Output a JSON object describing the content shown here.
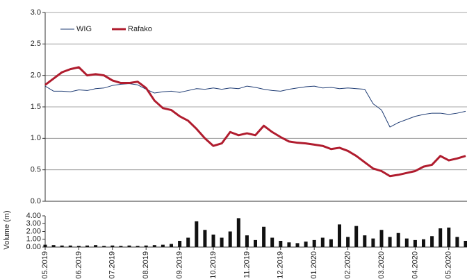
{
  "chart_data": [
    {
      "type": "line",
      "series": [
        {
          "name": "WIG",
          "color": "#1f3c74",
          "width": 1,
          "values": [
            1.83,
            1.75,
            1.75,
            1.74,
            1.77,
            1.76,
            1.79,
            1.8,
            1.84,
            1.86,
            1.87,
            1.85,
            1.78,
            1.72,
            1.74,
            1.75,
            1.73,
            1.76,
            1.79,
            1.78,
            1.8,
            1.78,
            1.8,
            1.79,
            1.83,
            1.81,
            1.78,
            1.76,
            1.75,
            1.78,
            1.8,
            1.82,
            1.83,
            1.8,
            1.81,
            1.79,
            1.8,
            1.79,
            1.78,
            1.55,
            1.45,
            1.18,
            1.25,
            1.3,
            1.35,
            1.38,
            1.4,
            1.4,
            1.38,
            1.4,
            1.43
          ]
        },
        {
          "name": "Rafako",
          "color": "#b01c2e",
          "width": 3,
          "values": [
            1.85,
            1.95,
            2.05,
            2.1,
            2.13,
            2.0,
            2.02,
            2.0,
            1.92,
            1.88,
            1.88,
            1.9,
            1.8,
            1.6,
            1.48,
            1.45,
            1.35,
            1.28,
            1.15,
            1.0,
            0.88,
            0.92,
            1.1,
            1.05,
            1.08,
            1.05,
            1.2,
            1.1,
            1.02,
            0.95,
            0.93,
            0.92,
            0.9,
            0.88,
            0.83,
            0.85,
            0.8,
            0.72,
            0.62,
            0.52,
            0.48,
            0.4,
            0.42,
            0.45,
            0.48,
            0.55,
            0.58,
            0.72,
            0.65,
            0.68,
            0.72
          ]
        }
      ],
      "ylim": [
        0,
        3
      ],
      "yticks": [
        {
          "value": 0,
          "label": "0.0"
        },
        0.5,
        {
          "value": 1,
          "label": "1.0"
        },
        1.5,
        {
          "value": 2,
          "label": "2.0"
        },
        2.5,
        {
          "value": 3,
          "label": "3.0"
        }
      ],
      "grid": true,
      "legend": "top-left"
    },
    {
      "type": "bar",
      "ylabel": "Volume (m)",
      "color": "#111111",
      "categories": [
        "05.2019",
        null,
        null,
        null,
        "06.2019",
        null,
        null,
        null,
        "07.2019",
        null,
        null,
        null,
        "08.2019",
        null,
        null,
        null,
        "09.2019",
        null,
        null,
        null,
        "10.2019",
        null,
        null,
        null,
        "11.2019",
        null,
        null,
        null,
        "12.2019",
        null,
        null,
        null,
        "01.2020",
        null,
        null,
        null,
        "02.2020",
        null,
        null,
        null,
        "03.2020",
        null,
        null,
        null,
        "04.2020",
        null,
        null,
        null,
        "05.2020",
        null,
        null
      ],
      "values": [
        0.3,
        0.25,
        0.2,
        0.2,
        0.15,
        0.2,
        0.25,
        0.15,
        0.2,
        0.15,
        0.2,
        0.15,
        0.2,
        0.25,
        0.3,
        0.4,
        0.8,
        1.2,
        3.3,
        2.2,
        1.6,
        1.2,
        2.0,
        3.7,
        1.5,
        0.9,
        2.6,
        1.2,
        0.8,
        0.6,
        0.5,
        0.7,
        0.9,
        1.2,
        1.0,
        2.9,
        1.3,
        2.7,
        1.5,
        1.1,
        2.2,
        1.3,
        1.8,
        1.1,
        0.9,
        1.0,
        1.4,
        2.4,
        2.5,
        1.3,
        0.8
      ],
      "ylim": [
        0,
        4
      ],
      "yticks": [
        {
          "value": 0,
          "label": "0.00"
        },
        {
          "value": 1,
          "label": "1.00"
        },
        {
          "value": 2,
          "label": "2.00"
        },
        {
          "value": 3,
          "label": "3.00"
        },
        {
          "value": 4,
          "label": "4.00"
        }
      ]
    }
  ]
}
